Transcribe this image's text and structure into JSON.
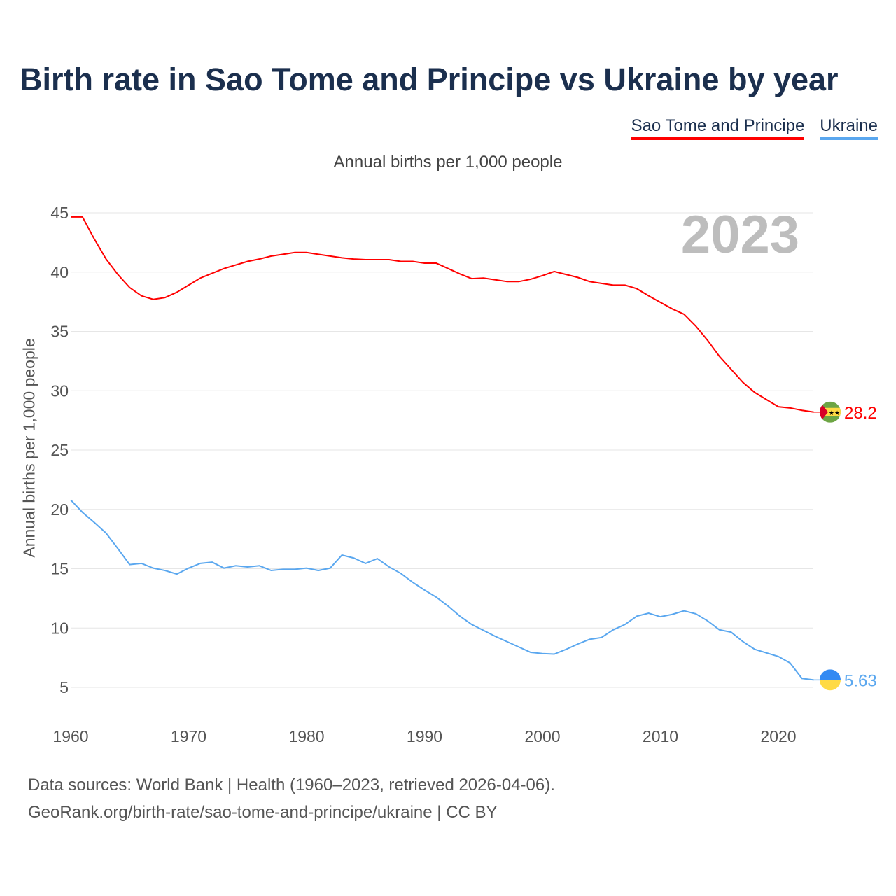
{
  "chart_data": {
    "type": "line",
    "title": "Birth rate in Sao Tome and Principe vs Ukraine by year",
    "subtitle": "Annual births per 1,000 people",
    "ylabel": "Annual births per 1,000 people",
    "xlabel": "",
    "year_label": "2023",
    "xlim": [
      1960,
      2023
    ],
    "ylim": [
      2,
      46
    ],
    "xticks": [
      1960,
      1970,
      1980,
      1990,
      2000,
      2010,
      2020
    ],
    "yticks": [
      5,
      10,
      15,
      20,
      25,
      30,
      35,
      40,
      45
    ],
    "grid": true,
    "legend_position": "top-right",
    "series": [
      {
        "name": "Sao Tome and Principe",
        "color": "#ff0000",
        "end_label": "28.2",
        "values": [
          44.65,
          44.65,
          42.8,
          41.1,
          39.8,
          38.7,
          38.0,
          37.7,
          37.85,
          38.3,
          38.9,
          39.5,
          39.9,
          40.3,
          40.6,
          40.9,
          41.1,
          41.35,
          41.5,
          41.65,
          41.65,
          41.5,
          41.35,
          41.2,
          41.1,
          41.05,
          41.05,
          41.05,
          40.9,
          40.9,
          40.75,
          40.75,
          40.3,
          39.85,
          39.45,
          39.5,
          39.35,
          39.2,
          39.2,
          39.4,
          39.7,
          40.05,
          39.8,
          39.55,
          39.2,
          39.05,
          38.9,
          38.9,
          38.6,
          38.0,
          37.45,
          36.9,
          36.45,
          35.45,
          34.25,
          32.9,
          31.8,
          30.7,
          29.85,
          29.25,
          28.65,
          28.55,
          28.35,
          28.2
        ]
      },
      {
        "name": "Ukraine",
        "color": "#5aa7ef",
        "end_label": "5.63",
        "values": [
          20.8,
          19.75,
          18.9,
          18.0,
          16.7,
          15.35,
          15.45,
          15.05,
          14.85,
          14.55,
          15.05,
          15.45,
          15.55,
          15.05,
          15.25,
          15.15,
          15.25,
          14.85,
          14.95,
          14.95,
          15.05,
          14.85,
          15.05,
          16.15,
          15.9,
          15.45,
          15.85,
          15.15,
          14.6,
          13.85,
          13.2,
          12.6,
          11.85,
          11.0,
          10.3,
          9.8,
          9.3,
          8.85,
          8.4,
          7.95,
          7.85,
          7.8,
          8.2,
          8.65,
          9.05,
          9.2,
          9.85,
          10.3,
          11.0,
          11.25,
          10.95,
          11.15,
          11.45,
          11.2,
          10.6,
          9.85,
          9.65,
          8.85,
          8.2,
          7.9,
          7.6,
          7.05,
          5.75,
          5.63
        ]
      }
    ]
  },
  "footer": {
    "line1": "Data sources: World Bank | Health (1960–2023, retrieved 2026-04-06).",
    "line2": "GeoRank.org/birth-rate/sao-tome-and-principe/ukraine | CC BY"
  }
}
